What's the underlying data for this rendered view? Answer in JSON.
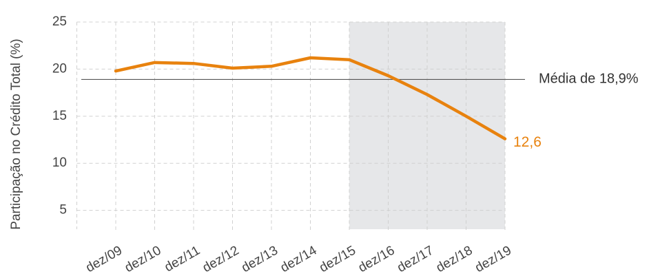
{
  "chart_data": {
    "type": "line",
    "y_label": "Participação no Crédito Total (%)",
    "categories": [
      "dez/09",
      "dez/10",
      "dez/11",
      "dez/12",
      "dez/13",
      "dez/14",
      "dez/15",
      "dez/16",
      "dez/17",
      "dez/18",
      "dez/19"
    ],
    "series": [
      {
        "color": "#e8820e",
        "values": [
          19.8,
          20.7,
          20.6,
          20.1,
          20.3,
          21.2,
          21.0,
          19.3,
          17.3,
          15.0,
          12.6
        ],
        "value_labels": [
          null,
          null,
          null,
          null,
          null,
          null,
          null,
          null,
          null,
          null,
          "12,6"
        ]
      }
    ],
    "reference_line": {
      "value": 18.9,
      "label": "Média de 18,9%",
      "color": "#555555"
    },
    "shaded_range": {
      "from": "dez/15",
      "to": "dez/19",
      "color": "#e6e7e9"
    },
    "ylim": [
      3,
      25
    ],
    "yticks": [
      5,
      10,
      15,
      20,
      25
    ],
    "grid": true
  }
}
